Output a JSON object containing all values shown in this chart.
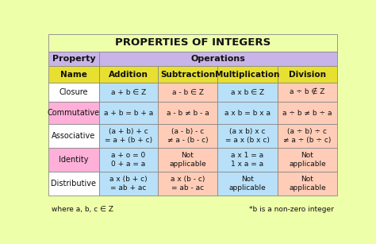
{
  "title": "PROPERTIES OF INTEGERS",
  "title_bg": "#eeffaa",
  "header1_bg": "#c8b4e8",
  "header2_bg": "#e8e030",
  "rows": [
    {
      "name": "Closure",
      "name_bg": "#ffffff",
      "cells": [
        {
          "text": "a + b ∈ Z",
          "bg": "#b8e0f8"
        },
        {
          "text": "a - b ∈ Z",
          "bg": "#ffccb8"
        },
        {
          "text": "a x b ∈ Z",
          "bg": "#b8e0f8"
        },
        {
          "text": "a ÷ b ∉ Z",
          "bg": "#ffccb8"
        }
      ]
    },
    {
      "name": "Commutative",
      "name_bg": "#ffb0d8",
      "cells": [
        {
          "text": "a + b = b + a",
          "bg": "#b8e0f8"
        },
        {
          "text": "a - b ≠ b - a",
          "bg": "#ffccb8"
        },
        {
          "text": "a x b = b x a",
          "bg": "#b8e0f8"
        },
        {
          "text": "a ÷ b ≠ b ÷ a",
          "bg": "#ffccb8"
        }
      ]
    },
    {
      "name": "Associative",
      "name_bg": "#ffffff",
      "cells": [
        {
          "text": "(a + b) + c\n= a + (b + c)",
          "bg": "#b8e0f8"
        },
        {
          "text": "(a - b) - c\n≠ a - (b - c)",
          "bg": "#ffccb8"
        },
        {
          "text": "(a x b) x c\n= a x (b x c)",
          "bg": "#b8e0f8"
        },
        {
          "text": "(a ÷ b) ÷ c\n≠ a ÷ (b ÷ c)",
          "bg": "#ffccb8"
        }
      ]
    },
    {
      "name": "Identity",
      "name_bg": "#ffb0d8",
      "cells": [
        {
          "text": "a + o = 0\n0 + a = a",
          "bg": "#b8e0f8"
        },
        {
          "text": "Not\napplicable",
          "bg": "#ffccb8"
        },
        {
          "text": "a x 1 = a\n1 x a = a",
          "bg": "#b8e0f8"
        },
        {
          "text": "Not\napplicable",
          "bg": "#ffccb8"
        }
      ]
    },
    {
      "name": "Distributive",
      "name_bg": "#ffffff",
      "cells": [
        {
          "text": "a x (b + c)\n= ab + ac",
          "bg": "#b8e0f8"
        },
        {
          "text": "a x (b - c)\n= ab - ac",
          "bg": "#ffccb8"
        },
        {
          "text": "Not\napplicable",
          "bg": "#b8e0f8"
        },
        {
          "text": "Not\napplicable",
          "bg": "#ffccb8"
        }
      ]
    }
  ],
  "col_props": [
    0.175,
    0.205,
    0.205,
    0.21,
    0.205
  ],
  "row_props": [
    0.105,
    0.085,
    0.095,
    0.115,
    0.13,
    0.14,
    0.14,
    0.14
  ],
  "footer_left": "where a, b, c ∈ Z",
  "footer_right": "*b is a non-zero integer",
  "border_color": "#888888",
  "text_color": "#111111"
}
